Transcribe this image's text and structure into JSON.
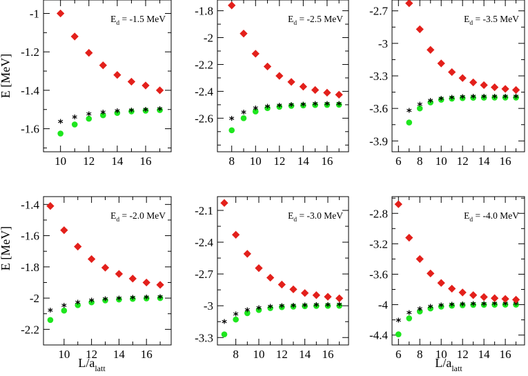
{
  "figure": {
    "ylabel": {
      "main": "E [MeV]"
    },
    "xlabel": {
      "main": "L/a",
      "sub": "latt"
    }
  },
  "chart_data": [
    {
      "type": "scatter",
      "annotation": {
        "prefix": "E",
        "sub": "d",
        "value": " = -1.5 MeV"
      },
      "xlim": [
        8.8,
        17.8
      ],
      "xticks": [
        10,
        12,
        14,
        16
      ],
      "ylim": [
        -1.72,
        -0.93
      ],
      "yticks": [
        -1,
        -1.2,
        -1.4,
        -1.6
      ],
      "series": [
        {
          "name": "red",
          "x": [
            10,
            11,
            12,
            13,
            14,
            15,
            16,
            17
          ],
          "y": [
            -1.0,
            -1.12,
            -1.205,
            -1.27,
            -1.32,
            -1.355,
            -1.375,
            -1.4
          ]
        },
        {
          "name": "star",
          "x": [
            10,
            11,
            12,
            13,
            14,
            15,
            16,
            17
          ],
          "y": [
            -1.57,
            -1.545,
            -1.53,
            -1.52,
            -1.513,
            -1.51,
            -1.506,
            -1.503
          ]
        },
        {
          "name": "green",
          "x": [
            10,
            11,
            12,
            13,
            14,
            15,
            16,
            17
          ],
          "y": [
            -1.625,
            -1.578,
            -1.548,
            -1.53,
            -1.518,
            -1.51,
            -1.506,
            -1.503
          ]
        }
      ]
    },
    {
      "type": "scatter",
      "annotation": {
        "prefix": "E",
        "sub": "d",
        "value": " = -2.5 MeV"
      },
      "xlim": [
        6.8,
        17.8
      ],
      "xticks": [
        8,
        10,
        12,
        14,
        16
      ],
      "ylim": [
        -2.85,
        -1.72
      ],
      "yticks": [
        -1.8,
        -2,
        -2.2,
        -2.4,
        -2.6
      ],
      "series": [
        {
          "name": "red",
          "x": [
            8,
            9,
            10,
            11,
            12,
            13,
            14,
            15,
            16,
            17
          ],
          "y": [
            -1.76,
            -1.97,
            -2.12,
            -2.215,
            -2.285,
            -2.33,
            -2.365,
            -2.39,
            -2.41,
            -2.425
          ]
        },
        {
          "name": "star",
          "x": [
            8,
            9,
            10,
            11,
            12,
            13,
            14,
            15,
            16,
            17
          ],
          "y": [
            -2.61,
            -2.565,
            -2.535,
            -2.52,
            -2.513,
            -2.508,
            -2.505,
            -2.502,
            -2.501,
            -2.5
          ]
        },
        {
          "name": "green",
          "x": [
            8,
            9,
            10,
            11,
            12,
            13,
            14,
            15,
            16,
            17
          ],
          "y": [
            -2.69,
            -2.6,
            -2.55,
            -2.525,
            -2.515,
            -2.508,
            -2.505,
            -2.502,
            -2.501,
            -2.5
          ]
        }
      ]
    },
    {
      "type": "scatter",
      "annotation": {
        "prefix": "E",
        "sub": "d",
        "value": " = -3.5 MeV"
      },
      "xlim": [
        5.4,
        17.8
      ],
      "xticks": [
        6,
        8,
        10,
        12,
        14,
        16
      ],
      "ylim": [
        -4.0,
        -2.6
      ],
      "yticks": [
        -2.7,
        -3,
        -3.3,
        -3.6,
        -3.9
      ],
      "series": [
        {
          "name": "red",
          "x": [
            7,
            8,
            9,
            10,
            11,
            12,
            13,
            14,
            15,
            16,
            17
          ],
          "y": [
            -2.63,
            -2.87,
            -3.06,
            -3.185,
            -3.265,
            -3.32,
            -3.36,
            -3.385,
            -3.405,
            -3.42,
            -3.43
          ]
        },
        {
          "name": "star",
          "x": [
            7,
            8,
            9,
            10,
            11,
            12,
            13,
            14,
            15,
            16,
            17
          ],
          "y": [
            -3.63,
            -3.575,
            -3.54,
            -3.52,
            -3.51,
            -3.505,
            -3.502,
            -3.501,
            -3.5,
            -3.5,
            -3.5
          ]
        },
        {
          "name": "green",
          "x": [
            7,
            8,
            9,
            10,
            11,
            12,
            13,
            14,
            15,
            16,
            17
          ],
          "y": [
            -3.73,
            -3.6,
            -3.545,
            -3.52,
            -3.51,
            -3.505,
            -3.502,
            -3.501,
            -3.5,
            -3.5,
            -3.5
          ]
        }
      ]
    },
    {
      "type": "scatter",
      "annotation": {
        "prefix": "E",
        "sub": "d",
        "value": " = -2.0 MeV"
      },
      "xlim": [
        8.5,
        17.8
      ],
      "xticks": [
        10,
        12,
        14,
        16
      ],
      "ylim": [
        -2.3,
        -1.35
      ],
      "yticks": [
        -1.4,
        -1.6,
        -1.8,
        -2,
        -2.2
      ],
      "series": [
        {
          "name": "red",
          "x": [
            9,
            10,
            11,
            12,
            13,
            14,
            15,
            16,
            17
          ],
          "y": [
            -1.41,
            -1.565,
            -1.67,
            -1.75,
            -1.805,
            -1.845,
            -1.875,
            -1.9,
            -1.915
          ]
        },
        {
          "name": "star",
          "x": [
            9,
            10,
            11,
            12,
            13,
            14,
            15,
            16,
            17
          ],
          "y": [
            -2.085,
            -2.055,
            -2.035,
            -2.022,
            -2.013,
            -2.008,
            -2.004,
            -2.002,
            -2.0
          ]
        },
        {
          "name": "green",
          "x": [
            9,
            10,
            11,
            12,
            13,
            14,
            15,
            16,
            17
          ],
          "y": [
            -2.14,
            -2.08,
            -2.045,
            -2.027,
            -2.015,
            -2.009,
            -2.005,
            -2.002,
            -2.0
          ]
        }
      ]
    },
    {
      "type": "scatter",
      "annotation": {
        "prefix": "E",
        "sub": "d",
        "value": " = -3.0 MeV"
      },
      "xlim": [
        6.4,
        17.8
      ],
      "xticks": [
        8,
        10,
        12,
        14,
        16
      ],
      "ylim": [
        -3.37,
        -1.97
      ],
      "yticks": [
        -2.1,
        -2.4,
        -2.7,
        -3,
        -3.3
      ],
      "series": [
        {
          "name": "red",
          "x": [
            7,
            8,
            9,
            10,
            11,
            12,
            13,
            14,
            15,
            16,
            17
          ],
          "y": [
            -2.03,
            -2.33,
            -2.51,
            -2.645,
            -2.735,
            -2.8,
            -2.845,
            -2.88,
            -2.9,
            -2.915,
            -2.93
          ]
        },
        {
          "name": "star",
          "x": [
            7,
            8,
            9,
            10,
            11,
            12,
            13,
            14,
            15,
            16,
            17
          ],
          "y": [
            -3.16,
            -3.09,
            -3.05,
            -3.03,
            -3.018,
            -3.011,
            -3.007,
            -3.004,
            -3.002,
            -3.001,
            -3.0
          ]
        },
        {
          "name": "green",
          "x": [
            7,
            8,
            9,
            10,
            11,
            12,
            13,
            14,
            15,
            16,
            17
          ],
          "y": [
            -3.27,
            -3.13,
            -3.07,
            -3.04,
            -3.022,
            -3.013,
            -3.008,
            -3.004,
            -3.002,
            -3.001,
            -3.0
          ]
        }
      ]
    },
    {
      "type": "scatter",
      "annotation": {
        "prefix": "E",
        "sub": "d",
        "value": " = -4.0 MeV"
      },
      "xlim": [
        5.4,
        17.8
      ],
      "xticks": [
        6,
        8,
        10,
        12,
        14,
        16
      ],
      "ylim": [
        -4.53,
        -2.58
      ],
      "yticks": [
        -2.8,
        -3.2,
        -3.6,
        -4,
        -4.4
      ],
      "series": [
        {
          "name": "red",
          "x": [
            6,
            7,
            8,
            9,
            10,
            11,
            12,
            13,
            14,
            15,
            16,
            17
          ],
          "y": [
            -2.68,
            -3.12,
            -3.4,
            -3.59,
            -3.715,
            -3.79,
            -3.84,
            -3.875,
            -3.9,
            -3.915,
            -3.925,
            -3.935
          ]
        },
        {
          "name": "star",
          "x": [
            6,
            7,
            8,
            9,
            10,
            11,
            12,
            13,
            14,
            15,
            16,
            17
          ],
          "y": [
            -4.22,
            -4.12,
            -4.07,
            -4.04,
            -4.022,
            -4.012,
            -4.007,
            -4.004,
            -4.002,
            -4.001,
            -4.0,
            -4.0
          ]
        },
        {
          "name": "green",
          "x": [
            6,
            7,
            8,
            9,
            10,
            11,
            12,
            13,
            14,
            15,
            16,
            17
          ],
          "y": [
            -4.39,
            -4.18,
            -4.09,
            -4.05,
            -4.026,
            -4.014,
            -4.008,
            -4.004,
            -4.002,
            -4.001,
            -4.0,
            -4.0
          ]
        }
      ]
    }
  ],
  "colors": {
    "red": "#e3201b",
    "green": "#1ee61e",
    "star": "#000000",
    "axis": "#000000"
  }
}
